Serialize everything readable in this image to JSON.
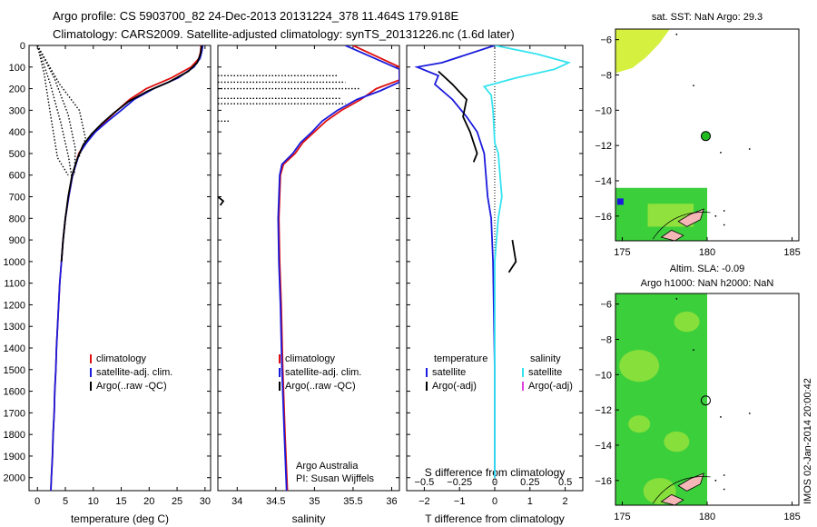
{
  "header": {
    "line1": "Argo profile: CS 5903700_82 24-Dec-2013 20131224_378 11.464S 179.918E",
    "line2": "Climatology: CARS2009. Satellite-adjusted climatology: synTS_20131226.nc (1.6d later)"
  },
  "colors": {
    "climatology": "#e01010",
    "satellite": "#1a1adc",
    "argo": "#000000",
    "sat_salinity": "#33e3f0",
    "argo_adj_salinity": "#e040e0",
    "map_green": "#3ccf3c",
    "map_yellow": "#d6f040",
    "map_land": "#f4b6b6",
    "map_marker": "#22bb22"
  },
  "chart_data": [
    {
      "type": "line",
      "title": "",
      "xlabel": "temperature (deg C)",
      "ylabel": "",
      "xlim": [
        -1.5,
        31
      ],
      "ylim": [
        2060,
        0
      ],
      "x_ticks": [
        0,
        5,
        10,
        15,
        20,
        25,
        30
      ],
      "y_ticks": [
        0,
        100,
        200,
        300,
        400,
        500,
        600,
        700,
        800,
        900,
        1000,
        1100,
        1200,
        1300,
        1400,
        1500,
        1600,
        1700,
        1800,
        1900,
        2000
      ],
      "legend": {
        "placement": "lower-center",
        "entries": [
          "climatology",
          "satellite-adj. clim.",
          "Argo(..raw -QC)"
        ]
      },
      "series": [
        {
          "name": "climatology",
          "style": "solid",
          "points": [
            [
              29.3,
              0
            ],
            [
              29.2,
              30
            ],
            [
              28.9,
              60
            ],
            [
              27.5,
              100
            ],
            [
              24,
              150
            ],
            [
              19.5,
              200
            ],
            [
              16.5,
              250
            ],
            [
              14.3,
              300
            ],
            [
              12.2,
              350
            ],
            [
              10.2,
              400
            ],
            [
              8.6,
              450
            ],
            [
              7.4,
              500
            ],
            [
              6.3,
              600
            ],
            [
              5.6,
              700
            ],
            [
              5,
              800
            ],
            [
              4.6,
              900
            ],
            [
              4.3,
              1000
            ],
            [
              4,
              1100
            ],
            [
              3.8,
              1200
            ],
            [
              3.6,
              1300
            ],
            [
              3.4,
              1400
            ],
            [
              3.3,
              1500
            ],
            [
              3.1,
              1600
            ],
            [
              3,
              1700
            ],
            [
              2.8,
              1800
            ],
            [
              2.7,
              1900
            ],
            [
              2.5,
              2000
            ],
            [
              2.4,
              2060
            ]
          ]
        },
        {
          "name": "satellite-adj. clim.",
          "style": "solid",
          "points": [
            [
              29.6,
              0
            ],
            [
              29.4,
              30
            ],
            [
              29.1,
              60
            ],
            [
              28,
              100
            ],
            [
              25.2,
              150
            ],
            [
              20.8,
              200
            ],
            [
              17.3,
              250
            ],
            [
              15,
              300
            ],
            [
              12.6,
              350
            ],
            [
              10.4,
              400
            ],
            [
              8.8,
              450
            ],
            [
              7.5,
              500
            ],
            [
              6.3,
              600
            ],
            [
              5.6,
              700
            ],
            [
              5,
              800
            ],
            [
              4.6,
              900
            ],
            [
              4.3,
              1000
            ],
            [
              4,
              1100
            ],
            [
              3.8,
              1200
            ],
            [
              3.6,
              1300
            ],
            [
              3.4,
              1400
            ],
            [
              3.3,
              1500
            ],
            [
              3.1,
              1600
            ],
            [
              3,
              1700
            ],
            [
              2.8,
              1800
            ],
            [
              2.7,
              1900
            ],
            [
              2.5,
              2000
            ],
            [
              2.4,
              2060
            ]
          ]
        },
        {
          "name": "Argo(..raw -QC)",
          "style": "solid",
          "points": [
            [
              29.4,
              0
            ],
            [
              29.2,
              40
            ],
            [
              28.6,
              80
            ],
            [
              27,
              120
            ],
            [
              23.5,
              170
            ],
            [
              19.8,
              210
            ],
            [
              16.3,
              260
            ],
            [
              13.8,
              310
            ],
            [
              11.6,
              360
            ],
            [
              9.7,
              410
            ],
            [
              8.2,
              460
            ],
            [
              7.2,
              520
            ],
            [
              6.2,
              600
            ],
            [
              5.5,
              700
            ],
            [
              5,
              800
            ],
            [
              4.6,
              900
            ],
            [
              4.3,
              1000
            ]
          ]
        },
        {
          "name": "Argo raw",
          "style": "dotted",
          "points": [
            [
              0,
              0
            ],
            [
              3,
              150
            ],
            [
              5.5,
              320
            ],
            [
              6.8,
              480
            ],
            [
              6.6,
              600
            ]
          ]
        },
        {
          "name": "Argo raw",
          "style": "dotted",
          "points": [
            [
              0,
              0
            ],
            [
              2.2,
              170
            ],
            [
              4.2,
              360
            ],
            [
              5.6,
              520
            ],
            [
              6.2,
              620
            ]
          ]
        },
        {
          "name": "Argo raw",
          "style": "dotted",
          "points": [
            [
              0,
              0
            ],
            [
              1.2,
              130
            ],
            [
              2.4,
              330
            ],
            [
              3.6,
              520
            ],
            [
              5.5,
              600
            ]
          ]
        },
        {
          "name": "Argo raw",
          "style": "dotted",
          "points": [
            [
              0,
              0
            ],
            [
              4,
              180
            ],
            [
              7.5,
              300
            ],
            [
              8.6,
              430
            ],
            [
              7.4,
              520
            ]
          ]
        }
      ]
    },
    {
      "type": "line",
      "title": "",
      "xlabel": "salinity",
      "ylabel": "",
      "xlim": [
        33.75,
        36.1
      ],
      "ylim": [
        2060,
        0
      ],
      "x_ticks": [
        34,
        34.5,
        35,
        35.5,
        36
      ],
      "legend": {
        "placement": "lower-center",
        "entries": [
          "climatology",
          "satellite-adj. clim.",
          "Argo(..raw -QC)"
        ]
      },
      "annotations": [
        "Argo Australia",
        "PI: Susan Wijffels"
      ],
      "series": [
        {
          "name": "climatology",
          "style": "solid",
          "points": [
            [
              35.5,
              0
            ],
            [
              36.1,
              100
            ],
            [
              36.1,
              160
            ],
            [
              35.8,
              200
            ],
            [
              35.6,
              250
            ],
            [
              35.35,
              300
            ],
            [
              35.15,
              350
            ],
            [
              35,
              400
            ],
            [
              34.85,
              450
            ],
            [
              34.75,
              500
            ],
            [
              34.6,
              550
            ],
            [
              34.56,
              600
            ],
            [
              34.54,
              800
            ],
            [
              34.55,
              1000
            ],
            [
              34.57,
              1200
            ],
            [
              34.59,
              1500
            ],
            [
              34.62,
              1800
            ],
            [
              34.65,
              2060
            ]
          ]
        },
        {
          "name": "satellite-adj. clim.",
          "style": "solid",
          "points": [
            [
              35.4,
              0
            ],
            [
              36.1,
              110
            ],
            [
              36.1,
              170
            ],
            [
              35.85,
              210
            ],
            [
              35.55,
              250
            ],
            [
              35.3,
              300
            ],
            [
              35.1,
              350
            ],
            [
              34.97,
              400
            ],
            [
              34.82,
              450
            ],
            [
              34.72,
              500
            ],
            [
              34.58,
              550
            ],
            [
              34.55,
              600
            ],
            [
              34.53,
              800
            ],
            [
              34.54,
              1000
            ],
            [
              34.56,
              1200
            ],
            [
              34.58,
              1500
            ],
            [
              34.61,
              1800
            ],
            [
              34.64,
              2060
            ]
          ]
        },
        {
          "name": "Argo(..raw -QC)",
          "style": "dotted",
          "points": [
            [
              33.75,
              140
            ],
            [
              35.3,
              140
            ]
          ]
        },
        {
          "name": "Argo(..raw -QC)",
          "style": "dotted",
          "points": [
            [
              33.75,
              170
            ],
            [
              35.4,
              170
            ]
          ]
        },
        {
          "name": "Argo(..raw -QC)",
          "style": "dotted",
          "points": [
            [
              33.75,
              200
            ],
            [
              35.6,
              200
            ]
          ]
        },
        {
          "name": "Argo(..raw -QC)",
          "style": "dotted",
          "points": [
            [
              33.75,
              245
            ],
            [
              35.35,
              245
            ]
          ]
        },
        {
          "name": "Argo(..raw -QC)",
          "style": "dotted",
          "points": [
            [
              33.75,
              270
            ],
            [
              35.4,
              270
            ]
          ]
        },
        {
          "name": "Argo(..raw -QC)",
          "style": "dotted",
          "points": [
            [
              33.75,
              350
            ],
            [
              33.9,
              350
            ]
          ]
        },
        {
          "name": "Argo(..raw -QC)",
          "style": "solid",
          "points": [
            [
              33.75,
              700
            ],
            [
              33.82,
              720
            ],
            [
              33.78,
              740
            ]
          ]
        }
      ]
    },
    {
      "type": "line",
      "title": "",
      "xlabel": "T difference from climatology",
      "x2label": "S difference from climatology",
      "ylabel": "",
      "xlim": [
        -2.5,
        2.5
      ],
      "ylim": [
        2060,
        0
      ],
      "x_ticks": [
        -2,
        -1,
        0,
        1,
        2
      ],
      "x2_ticks": [
        "-0.5",
        "-0.25",
        "0",
        "0.25",
        "0.5"
      ],
      "legend": {
        "placement": "lower-center",
        "entries": [
          "temperature",
          "satellite",
          "Argo(-adj)",
          "salinity",
          "satellite",
          "Argo(-adj)"
        ]
      },
      "series": [
        {
          "name": "temperature satellite",
          "style": "solid",
          "points": [
            [
              0,
              0
            ],
            [
              -1.5,
              80
            ],
            [
              -2.2,
              100
            ],
            [
              -1.6,
              140
            ],
            [
              -1.7,
              180
            ],
            [
              -1.2,
              250
            ],
            [
              -0.8,
              330
            ],
            [
              -0.5,
              400
            ],
            [
              -0.3,
              500
            ],
            [
              -0.25,
              600
            ],
            [
              -0.2,
              700
            ],
            [
              -0.1,
              800
            ],
            [
              -0.05,
              1000
            ],
            [
              0,
              1500
            ],
            [
              0,
              2000
            ]
          ]
        },
        {
          "name": "salinity satellite",
          "style": "solid",
          "points": [
            [
              0,
              0
            ],
            [
              1.2,
              40
            ],
            [
              2.1,
              80
            ],
            [
              1.7,
              110
            ],
            [
              0.6,
              150
            ],
            [
              -0.3,
              190
            ],
            [
              -0.1,
              230
            ],
            [
              -0.05,
              300
            ],
            [
              0,
              450
            ],
            [
              0.1,
              500
            ],
            [
              0.15,
              600
            ],
            [
              0.2,
              700
            ],
            [
              0.1,
              800
            ],
            [
              0.05,
              900
            ],
            [
              0,
              1000
            ],
            [
              0,
              2000
            ]
          ]
        },
        {
          "name": "temperature Argo(-adj)",
          "style": "solid",
          "points": [
            [
              -1.6,
              120
            ],
            [
              -1.2,
              180
            ],
            [
              -0.8,
              250
            ],
            [
              -0.9,
              330
            ],
            [
              -0.7,
              400
            ],
            [
              -0.5,
              500
            ],
            [
              -0.6,
              540
            ]
          ]
        },
        {
          "name": "temperature Argo(-adj)",
          "style": "solid",
          "points": [
            [
              0.5,
              900
            ],
            [
              0.6,
              1000
            ],
            [
              0.4,
              1050
            ]
          ]
        }
      ]
    }
  ],
  "maps": [
    {
      "title": "sat. SST: NaN Argo: 29.3",
      "subtitle": "",
      "x_ticks": [
        175,
        180,
        185
      ],
      "y_ticks": [
        -6,
        -8,
        -10,
        -12,
        -14,
        -16
      ],
      "xlim": [
        174.6,
        185.4
      ],
      "ylim": [
        -17.4,
        -5.4
      ],
      "marker": {
        "lon": 179.918,
        "lat": -11.464
      }
    },
    {
      "title": "Altim. SLA: -0.09",
      "subtitle": "Argo h1000: NaN h2000: NaN",
      "x_ticks": [
        175,
        180,
        185
      ],
      "y_ticks": [
        -6,
        -8,
        -10,
        -12,
        -14,
        -16
      ],
      "xlim": [
        174.6,
        185.4
      ],
      "ylim": [
        -17.4,
        -5.4
      ],
      "marker": {
        "lon": 179.918,
        "lat": -11.464
      }
    }
  ],
  "footer": {
    "stamp": "IMOS 02-Jan-2014 20:00:42"
  }
}
